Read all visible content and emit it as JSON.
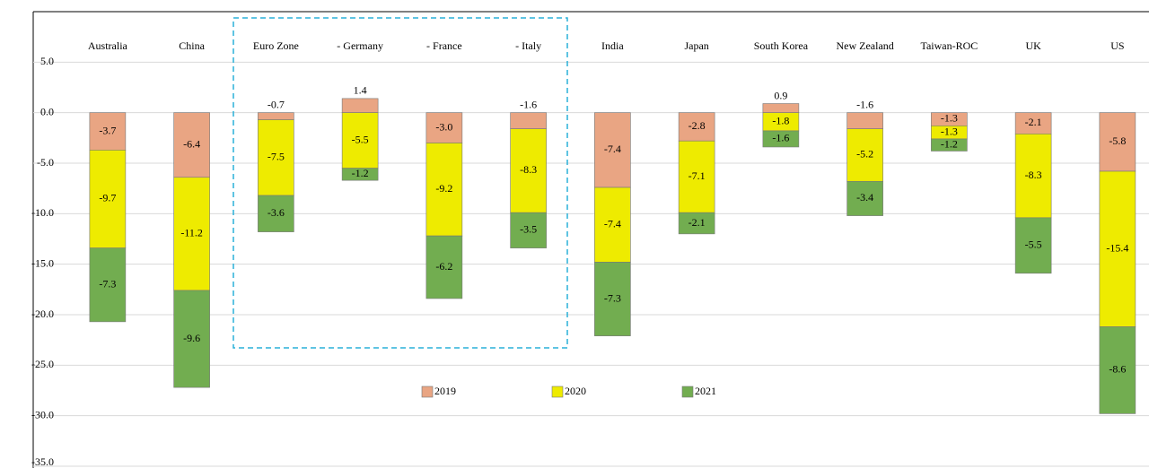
{
  "chart_data": {
    "type": "stacked_bar",
    "categories": [
      "Australia",
      "China",
      "Euro Zone",
      "- Germany",
      "- France",
      "- Italy",
      "India",
      "Japan",
      "South Korea",
      "New Zealand",
      "Taiwan-ROC",
      "UK",
      "US"
    ],
    "series": [
      {
        "name": "2019",
        "color": "#e9a583",
        "values": [
          -3.7,
          -6.4,
          -0.7,
          1.4,
          -3.0,
          -1.6,
          -7.4,
          -2.8,
          0.9,
          -1.6,
          -1.3,
          -2.1,
          -5.8
        ],
        "value_labels": [
          "-3.7",
          "-6.4",
          "-0.7",
          "1.4",
          "-3.0",
          "-1.6",
          "-7.4",
          "-2.8",
          "0.9",
          "-1.6",
          "-1.3",
          "-2.1",
          "-5.8"
        ]
      },
      {
        "name": "2020",
        "color": "#eeeb00",
        "values": [
          -9.7,
          -11.2,
          -7.5,
          -5.5,
          -9.2,
          -8.3,
          -7.4,
          -7.1,
          -1.8,
          -5.2,
          -1.3,
          -8.3,
          -15.4
        ]
      },
      {
        "name": "2021",
        "color": "#72ad50",
        "values": [
          -7.3,
          -9.6,
          -3.6,
          -1.2,
          -6.2,
          -3.5,
          -7.3,
          -2.1,
          -1.6,
          -3.4,
          -1.2,
          -5.5,
          -8.6
        ]
      }
    ],
    "ylim": [
      -35,
      10
    ],
    "yticks": [
      {
        "value": 5,
        "label": "5.0"
      },
      {
        "value": 0,
        "label": "0.0"
      },
      {
        "value": -5,
        "label": "-5.0"
      },
      {
        "value": -10,
        "label": "-10.0"
      },
      {
        "value": -15,
        "label": "-15.0"
      },
      {
        "value": -20,
        "label": "-20.0"
      },
      {
        "value": -25,
        "label": "-25.0"
      },
      {
        "value": -30,
        "label": "-30.0"
      },
      {
        "value": -35,
        "label": "-35.0"
      }
    ],
    "grid": true
  }
}
